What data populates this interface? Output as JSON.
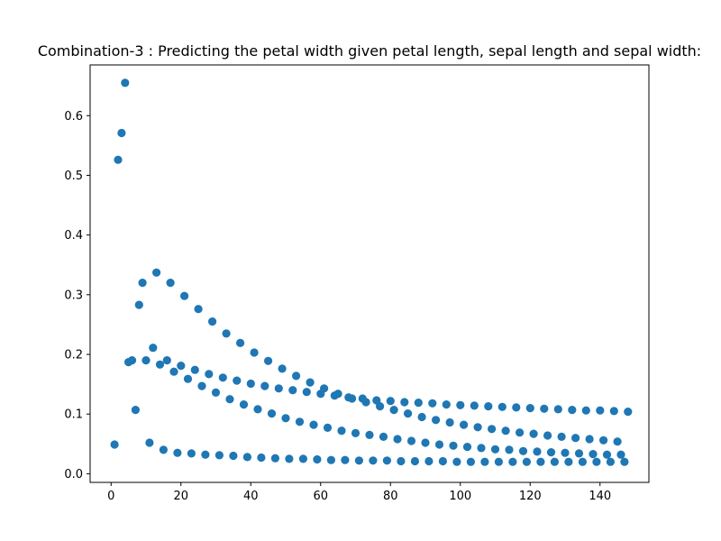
{
  "chart_data": {
    "type": "scatter",
    "title": "Combination-3 : Predicting the petal width given petal length, sepal length and sepal width:",
    "xlabel": "",
    "ylabel": "",
    "xlim": [
      -6,
      154
    ],
    "ylim": [
      -0.0145,
      0.685
    ],
    "xticks": [
      0,
      20,
      40,
      60,
      80,
      100,
      120,
      140
    ],
    "yticks": [
      0.0,
      0.1,
      0.2,
      0.3,
      0.4,
      0.5,
      0.6
    ],
    "xtick_labels": [
      "0",
      "20",
      "40",
      "60",
      "80",
      "100",
      "120",
      "140"
    ],
    "ytick_labels": [
      "0.0",
      "0.1",
      "0.2",
      "0.3",
      "0.4",
      "0.5",
      "0.6"
    ],
    "grid": false,
    "marker_color": "#1f77b4",
    "points": [
      [
        1,
        0.049
      ],
      [
        2,
        0.526
      ],
      [
        3,
        0.571
      ],
      [
        4,
        0.655
      ],
      [
        5,
        0.187
      ],
      [
        6,
        0.19
      ],
      [
        7,
        0.107
      ],
      [
        8,
        0.283
      ],
      [
        9,
        0.32
      ],
      [
        10,
        0.19
      ],
      [
        11,
        0.052
      ],
      [
        12,
        0.211
      ],
      [
        13,
        0.337
      ],
      [
        14,
        0.183
      ],
      [
        15,
        0.04
      ],
      [
        16,
        0.19
      ],
      [
        17,
        0.32
      ],
      [
        18,
        0.171
      ],
      [
        19,
        0.035
      ],
      [
        20,
        0.181
      ],
      [
        21,
        0.298
      ],
      [
        22,
        0.159
      ],
      [
        23,
        0.034
      ],
      [
        24,
        0.174
      ],
      [
        25,
        0.276
      ],
      [
        26,
        0.147
      ],
      [
        27,
        0.032
      ],
      [
        28,
        0.167
      ],
      [
        29,
        0.255
      ],
      [
        30,
        0.136
      ],
      [
        31,
        0.031
      ],
      [
        32,
        0.161
      ],
      [
        33,
        0.235
      ],
      [
        34,
        0.125
      ],
      [
        35,
        0.03
      ],
      [
        36,
        0.156
      ],
      [
        37,
        0.219
      ],
      [
        38,
        0.116
      ],
      [
        39,
        0.028
      ],
      [
        40,
        0.151
      ],
      [
        41,
        0.203
      ],
      [
        42,
        0.108
      ],
      [
        43,
        0.027
      ],
      [
        44,
        0.147
      ],
      [
        45,
        0.189
      ],
      [
        46,
        0.101
      ],
      [
        47,
        0.026
      ],
      [
        48,
        0.143
      ],
      [
        49,
        0.176
      ],
      [
        50,
        0.093
      ],
      [
        51,
        0.025
      ],
      [
        52,
        0.14
      ],
      [
        53,
        0.164
      ],
      [
        54,
        0.087
      ],
      [
        55,
        0.025
      ],
      [
        56,
        0.137
      ],
      [
        57,
        0.153
      ],
      [
        58,
        0.082
      ],
      [
        59,
        0.024
      ],
      [
        60,
        0.134
      ],
      [
        61,
        0.143
      ],
      [
        62,
        0.077
      ],
      [
        63,
        0.023
      ],
      [
        64,
        0.131
      ],
      [
        65,
        0.134
      ],
      [
        66,
        0.072
      ],
      [
        67,
        0.023
      ],
      [
        68,
        0.128
      ],
      [
        69,
        0.126
      ],
      [
        70,
        0.068
      ],
      [
        71,
        0.022
      ],
      [
        72,
        0.126
      ],
      [
        73,
        0.12
      ],
      [
        74,
        0.065
      ],
      [
        75,
        0.022
      ],
      [
        76,
        0.123
      ],
      [
        77,
        0.113
      ],
      [
        78,
        0.062
      ],
      [
        79,
        0.022
      ],
      [
        80,
        0.122
      ],
      [
        81,
        0.107
      ],
      [
        82,
        0.058
      ],
      [
        83,
        0.021
      ],
      [
        84,
        0.12
      ],
      [
        85,
        0.101
      ],
      [
        86,
        0.055
      ],
      [
        87,
        0.021
      ],
      [
        88,
        0.119
      ],
      [
        89,
        0.095
      ],
      [
        90,
        0.052
      ],
      [
        91,
        0.021
      ],
      [
        92,
        0.118
      ],
      [
        93,
        0.09
      ],
      [
        94,
        0.049
      ],
      [
        95,
        0.021
      ],
      [
        96,
        0.116
      ],
      [
        97,
        0.086
      ],
      [
        98,
        0.047
      ],
      [
        99,
        0.02
      ],
      [
        100,
        0.115
      ],
      [
        101,
        0.082
      ],
      [
        102,
        0.045
      ],
      [
        103,
        0.02
      ],
      [
        104,
        0.114
      ],
      [
        105,
        0.078
      ],
      [
        106,
        0.043
      ],
      [
        107,
        0.02
      ],
      [
        108,
        0.113
      ],
      [
        109,
        0.075
      ],
      [
        110,
        0.041
      ],
      [
        111,
        0.02
      ],
      [
        112,
        0.112
      ],
      [
        113,
        0.072
      ],
      [
        114,
        0.04
      ],
      [
        115,
        0.02
      ],
      [
        116,
        0.111
      ],
      [
        117,
        0.069
      ],
      [
        118,
        0.038
      ],
      [
        119,
        0.02
      ],
      [
        120,
        0.11
      ],
      [
        121,
        0.067
      ],
      [
        122,
        0.037
      ],
      [
        123,
        0.02
      ],
      [
        124,
        0.109
      ],
      [
        125,
        0.064
      ],
      [
        126,
        0.036
      ],
      [
        127,
        0.02
      ],
      [
        128,
        0.108
      ],
      [
        129,
        0.062
      ],
      [
        130,
        0.035
      ],
      [
        131,
        0.02
      ],
      [
        132,
        0.107
      ],
      [
        133,
        0.06
      ],
      [
        134,
        0.034
      ],
      [
        135,
        0.02
      ],
      [
        136,
        0.106
      ],
      [
        137,
        0.058
      ],
      [
        138,
        0.033
      ],
      [
        139,
        0.02
      ],
      [
        140,
        0.106
      ],
      [
        141,
        0.056
      ],
      [
        142,
        0.032
      ],
      [
        143,
        0.02
      ],
      [
        144,
        0.105
      ],
      [
        145,
        0.054
      ],
      [
        146,
        0.032
      ],
      [
        147,
        0.02
      ],
      [
        148,
        0.104
      ]
    ]
  }
}
